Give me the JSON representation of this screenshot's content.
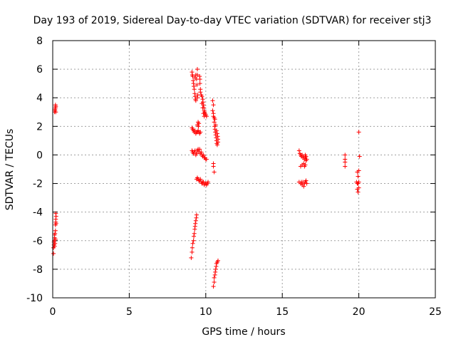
{
  "chart_data": {
    "type": "scatter",
    "title": "Day 193 of 2019, Sidereal Day-to-day VTEC variation (SDTVAR) for receiver stj3",
    "xlabel": "GPS time / hours",
    "ylabel": "SDTVAR / TECUs",
    "xlim": [
      0,
      25
    ],
    "ylim": [
      -10,
      8
    ],
    "xticks": [
      0,
      5,
      10,
      15,
      20,
      25
    ],
    "yticks": [
      -10,
      -8,
      -6,
      -4,
      -2,
      0,
      2,
      4,
      6,
      8
    ],
    "grid": true,
    "marker": "plus",
    "color": "#ff0000",
    "series": [
      {
        "name": "SDTVAR",
        "points": [
          [
            0.05,
            -6.9
          ],
          [
            0.05,
            -6.5
          ],
          [
            0.08,
            -6.3
          ],
          [
            0.08,
            -6.1
          ],
          [
            0.1,
            -6.0
          ],
          [
            0.12,
            -5.8
          ],
          [
            0.12,
            -5.6
          ],
          [
            0.15,
            -5.5
          ],
          [
            0.18,
            -5.3
          ],
          [
            0.12,
            -6.4
          ],
          [
            0.15,
            -6.2
          ],
          [
            0.18,
            -5.9
          ],
          [
            0.18,
            -4.9
          ],
          [
            0.2,
            -4.7
          ],
          [
            0.2,
            -4.5
          ],
          [
            0.22,
            -4.3
          ],
          [
            0.2,
            -4.1
          ],
          [
            0.22,
            -4.8
          ],
          [
            0.12,
            3.0
          ],
          [
            0.15,
            3.1
          ],
          [
            0.15,
            3.2
          ],
          [
            0.18,
            3.3
          ],
          [
            0.18,
            3.5
          ],
          [
            0.2,
            3.0
          ],
          [
            0.2,
            3.4
          ],
          [
            9.1,
            5.8
          ],
          [
            9.12,
            5.6
          ],
          [
            9.15,
            5.5
          ],
          [
            9.18,
            5.2
          ],
          [
            9.2,
            5.0
          ],
          [
            9.22,
            4.8
          ],
          [
            9.25,
            4.6
          ],
          [
            9.28,
            4.3
          ],
          [
            9.3,
            4.1
          ],
          [
            9.33,
            3.9
          ],
          [
            9.35,
            3.8
          ],
          [
            9.3,
            5.4
          ],
          [
            9.35,
            5.6
          ],
          [
            9.4,
            5.3
          ],
          [
            9.45,
            5.6
          ],
          [
            9.45,
            6.0
          ],
          [
            9.42,
            4.9
          ],
          [
            9.48,
            4.2
          ],
          [
            9.45,
            4.0
          ],
          [
            9.6,
            5.5
          ],
          [
            9.62,
            5.3
          ],
          [
            9.62,
            5.0
          ],
          [
            9.65,
            4.6
          ],
          [
            9.65,
            4.4
          ],
          [
            9.7,
            4.2
          ],
          [
            9.75,
            4.1
          ],
          [
            9.8,
            3.9
          ],
          [
            9.82,
            3.7
          ],
          [
            9.85,
            3.5
          ],
          [
            9.88,
            3.3
          ],
          [
            9.9,
            3.1
          ],
          [
            9.92,
            3.0
          ],
          [
            9.95,
            2.9
          ],
          [
            10.0,
            2.8
          ],
          [
            10.05,
            2.7
          ],
          [
            9.75,
            3.6
          ],
          [
            9.8,
            3.3
          ],
          [
            9.85,
            2.9
          ],
          [
            9.9,
            2.7
          ],
          [
            9.1,
            1.9
          ],
          [
            9.15,
            1.8
          ],
          [
            9.2,
            1.7
          ],
          [
            9.25,
            1.6
          ],
          [
            9.3,
            1.7
          ],
          [
            9.35,
            1.5
          ],
          [
            9.4,
            1.6
          ],
          [
            9.45,
            1.6
          ],
          [
            9.5,
            1.7
          ],
          [
            9.55,
            1.6
          ],
          [
            9.6,
            1.5
          ],
          [
            9.65,
            1.6
          ],
          [
            9.45,
            2.1
          ],
          [
            9.5,
            2.3
          ],
          [
            9.55,
            2.2
          ],
          [
            9.52,
            2.0
          ],
          [
            9.1,
            0.3
          ],
          [
            9.15,
            0.2
          ],
          [
            9.2,
            0.1
          ],
          [
            9.25,
            0.2
          ],
          [
            9.3,
            0.3
          ],
          [
            9.35,
            0.0
          ],
          [
            9.4,
            0.1
          ],
          [
            9.45,
            0.3
          ],
          [
            9.5,
            0.4
          ],
          [
            9.55,
            0.2
          ],
          [
            9.6,
            0.4
          ],
          [
            9.65,
            0.1
          ],
          [
            9.7,
            0.2
          ],
          [
            9.75,
            0.0
          ],
          [
            9.8,
            -0.1
          ],
          [
            9.85,
            0.0
          ],
          [
            9.9,
            -0.2
          ],
          [
            9.95,
            -0.2
          ],
          [
            10.0,
            -0.3
          ],
          [
            10.05,
            -0.3
          ],
          [
            9.4,
            -1.7
          ],
          [
            9.45,
            -1.6
          ],
          [
            9.5,
            -1.7
          ],
          [
            9.55,
            -1.8
          ],
          [
            9.6,
            -1.8
          ],
          [
            9.65,
            -1.7
          ],
          [
            9.7,
            -1.9
          ],
          [
            9.75,
            -2.0
          ],
          [
            9.8,
            -1.9
          ],
          [
            9.85,
            -1.9
          ],
          [
            9.9,
            -2.1
          ],
          [
            9.95,
            -2.0
          ],
          [
            10.0,
            -2.0
          ],
          [
            10.05,
            -2.1
          ],
          [
            10.1,
            -2.0
          ],
          [
            10.15,
            -1.9
          ],
          [
            10.45,
            3.8
          ],
          [
            10.5,
            3.5
          ],
          [
            10.5,
            2.9
          ],
          [
            10.55,
            2.6
          ],
          [
            10.55,
            2.3
          ],
          [
            10.58,
            2.0
          ],
          [
            10.6,
            1.8
          ],
          [
            10.62,
            1.6
          ],
          [
            10.65,
            1.4
          ],
          [
            10.68,
            1.2
          ],
          [
            10.7,
            1.0
          ],
          [
            10.72,
            0.8
          ],
          [
            10.75,
            0.7
          ],
          [
            10.45,
            3.1
          ],
          [
            10.5,
            2.7
          ],
          [
            10.6,
            2.5
          ],
          [
            10.65,
            2.1
          ],
          [
            10.7,
            1.7
          ],
          [
            10.75,
            1.5
          ],
          [
            10.78,
            1.3
          ],
          [
            10.8,
            1.1
          ],
          [
            10.8,
            0.9
          ],
          [
            10.5,
            -0.6
          ],
          [
            10.5,
            -0.8
          ],
          [
            10.55,
            -1.2
          ],
          [
            9.05,
            -7.2
          ],
          [
            9.1,
            -6.8
          ],
          [
            9.12,
            -6.5
          ],
          [
            9.15,
            -6.2
          ],
          [
            9.2,
            -6.0
          ],
          [
            9.22,
            -5.7
          ],
          [
            9.25,
            -5.5
          ],
          [
            9.28,
            -5.2
          ],
          [
            9.3,
            -5.0
          ],
          [
            9.32,
            -4.8
          ],
          [
            9.35,
            -4.6
          ],
          [
            9.38,
            -4.4
          ],
          [
            9.4,
            -4.2
          ],
          [
            10.5,
            -9.2
          ],
          [
            10.55,
            -8.9
          ],
          [
            10.55,
            -8.6
          ],
          [
            10.6,
            -8.4
          ],
          [
            10.62,
            -8.2
          ],
          [
            10.65,
            -8.0
          ],
          [
            10.68,
            -7.8
          ],
          [
            10.7,
            -7.6
          ],
          [
            10.75,
            -7.5
          ],
          [
            10.8,
            -7.4
          ],
          [
            16.1,
            0.3
          ],
          [
            16.15,
            0.1
          ],
          [
            16.2,
            0.0
          ],
          [
            16.25,
            -0.1
          ],
          [
            16.3,
            0.0
          ],
          [
            16.35,
            -0.2
          ],
          [
            16.4,
            -0.1
          ],
          [
            16.45,
            -0.3
          ],
          [
            16.5,
            -0.2
          ],
          [
            16.55,
            -0.4
          ],
          [
            16.6,
            -0.3
          ],
          [
            16.55,
            -0.1
          ],
          [
            16.5,
            0.0
          ],
          [
            16.2,
            -0.8
          ],
          [
            16.3,
            -0.7
          ],
          [
            16.4,
            -0.6
          ],
          [
            16.45,
            -0.8
          ],
          [
            16.5,
            -0.7
          ],
          [
            16.1,
            -1.9
          ],
          [
            16.2,
            -2.0
          ],
          [
            16.25,
            -1.9
          ],
          [
            16.3,
            -2.1
          ],
          [
            16.35,
            -1.9
          ],
          [
            16.4,
            -2.2
          ],
          [
            16.45,
            -2.0
          ],
          [
            16.5,
            -1.9
          ],
          [
            16.55,
            -1.8
          ],
          [
            16.6,
            -2.0
          ],
          [
            19.1,
            0.0
          ],
          [
            19.1,
            -0.3
          ],
          [
            19.1,
            -0.5
          ],
          [
            19.1,
            -0.8
          ],
          [
            19.9,
            -1.2
          ],
          [
            19.95,
            -1.5
          ],
          [
            19.85,
            -1.9
          ],
          [
            19.9,
            -2.0
          ],
          [
            19.95,
            -2.0
          ],
          [
            20.0,
            -1.9
          ],
          [
            19.9,
            -2.4
          ],
          [
            19.95,
            -2.6
          ],
          [
            20.0,
            -2.3
          ],
          [
            20.0,
            -1.1
          ],
          [
            20.05,
            -0.1
          ],
          [
            20.0,
            1.6
          ]
        ]
      }
    ]
  }
}
